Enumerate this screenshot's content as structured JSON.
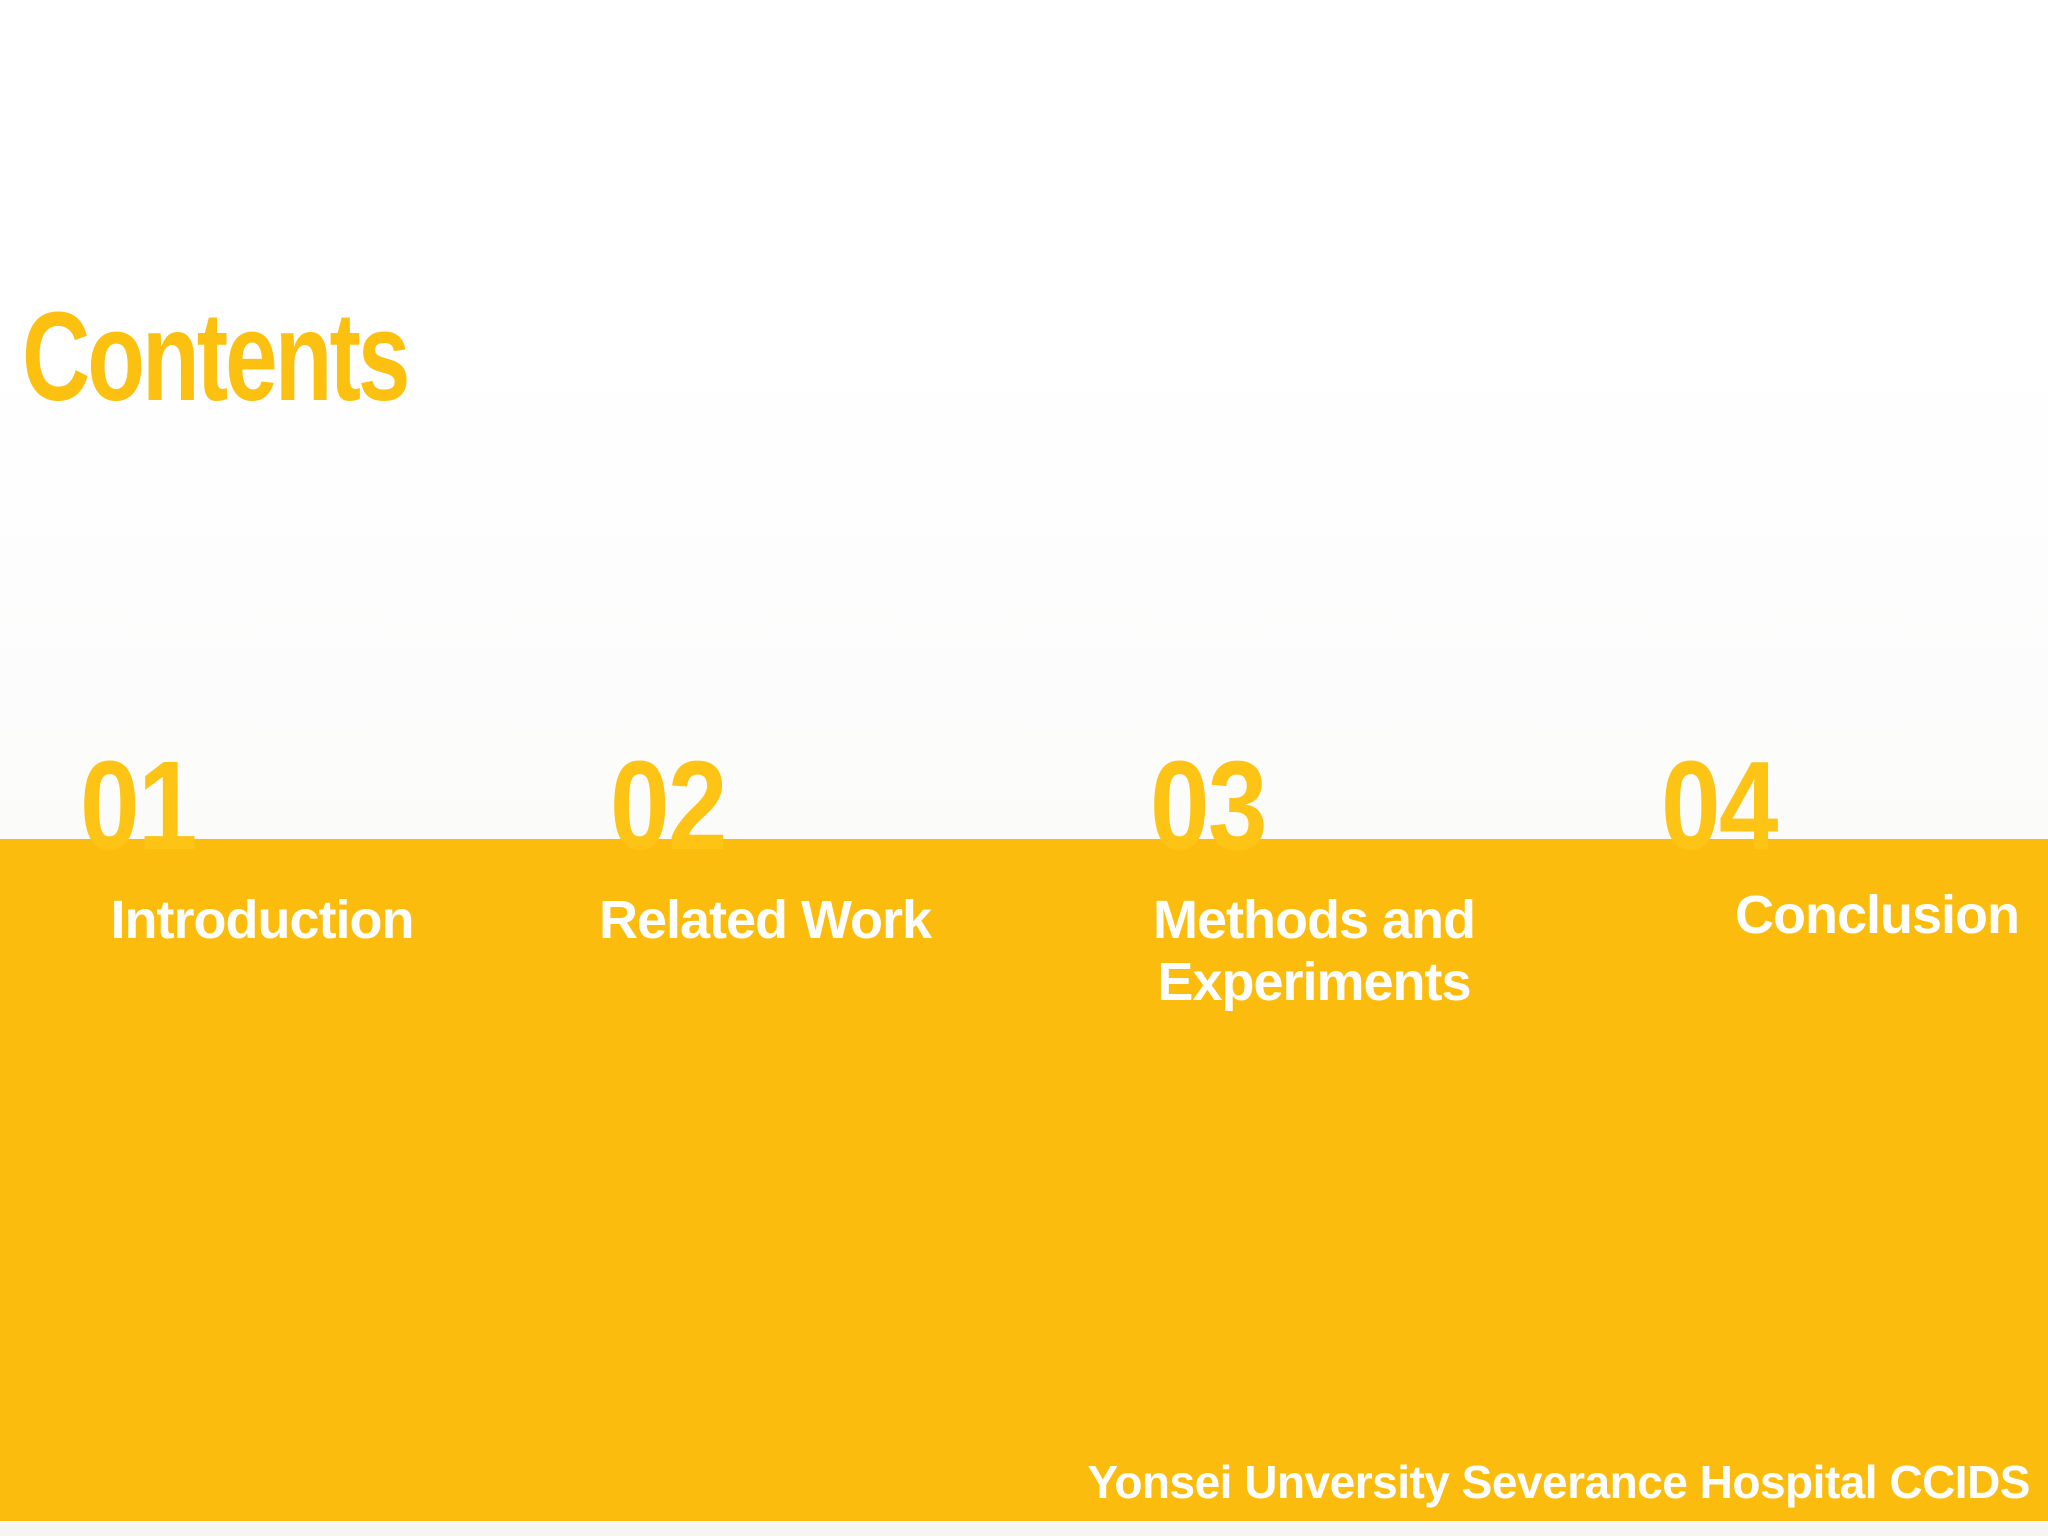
{
  "slide": {
    "title": "Contents",
    "items": [
      {
        "number": "01",
        "label": "Introduction"
      },
      {
        "number": "02",
        "label": "Related Work"
      },
      {
        "number": "03",
        "label": "Methods and Experiments"
      },
      {
        "number": "04",
        "label": "Conclusion"
      }
    ],
    "footer": "Yonsei Unversity Severance Hospital CCIDS",
    "colors": {
      "accent_band": "#FBBC0D",
      "title_and_numbers": "#FCC011",
      "label_text": "#FFFFFF"
    }
  }
}
